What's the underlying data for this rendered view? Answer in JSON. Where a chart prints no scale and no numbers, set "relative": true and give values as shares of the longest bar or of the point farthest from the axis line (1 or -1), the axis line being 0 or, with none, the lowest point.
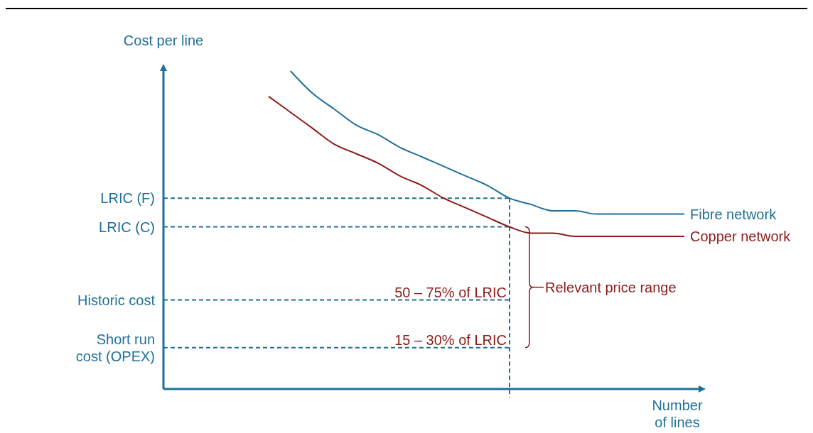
{
  "chart_data": {
    "type": "line",
    "relative": true,
    "ylabel": "Cost per line",
    "xlabel": "Number of lines",
    "categories": [
      null,
      null,
      null,
      null,
      null,
      null,
      null,
      null,
      null,
      null,
      null,
      null,
      null,
      null,
      null,
      null,
      null,
      null,
      null,
      null
    ],
    "series": [
      {
        "name": "Fibre network",
        "color": "#1f6f98",
        "values": [
          null,
          1.0,
          0.93,
          0.88,
          0.83,
          0.8,
          0.76,
          0.73,
          0.7,
          0.67,
          0.64,
          0.6,
          0.58,
          0.56,
          0.56,
          0.55,
          0.55,
          0.55,
          0.55,
          0.55
        ]
      },
      {
        "name": "Copper network",
        "color": "#8b1a1a",
        "values": [
          0.92,
          0.87,
          0.82,
          0.77,
          0.74,
          0.71,
          0.67,
          0.64,
          0.6,
          0.57,
          0.54,
          0.51,
          0.49,
          0.49,
          0.48,
          0.48,
          0.48,
          0.48,
          0.48,
          0.48
        ]
      }
    ],
    "ref_lines": [
      {
        "axis": "y",
        "value": 0.6,
        "label": "LRIC (F)",
        "line_style": "dashed",
        "color": "#1f6f98"
      },
      {
        "axis": "y",
        "value": 0.51,
        "label": "LRIC (C)",
        "line_style": "dashed",
        "color": "#1f6f98"
      },
      {
        "axis": "y",
        "value": 0.28,
        "label": "Historic cost",
        "line_style": "dashed",
        "color": "#1f6f98"
      },
      {
        "axis": "y",
        "value": 0.13,
        "label": "Short run\ncost (OPEX)",
        "line_style": "dashed",
        "color": "#1f6f98"
      }
    ],
    "annotations": [
      {
        "text": "50 – 75% of LRIC",
        "y": 0.28
      },
      {
        "text": "15 – 30% of LRIC",
        "y": 0.13
      },
      "Relevant price range"
    ],
    "marker": "none",
    "line_style": "solid"
  }
}
